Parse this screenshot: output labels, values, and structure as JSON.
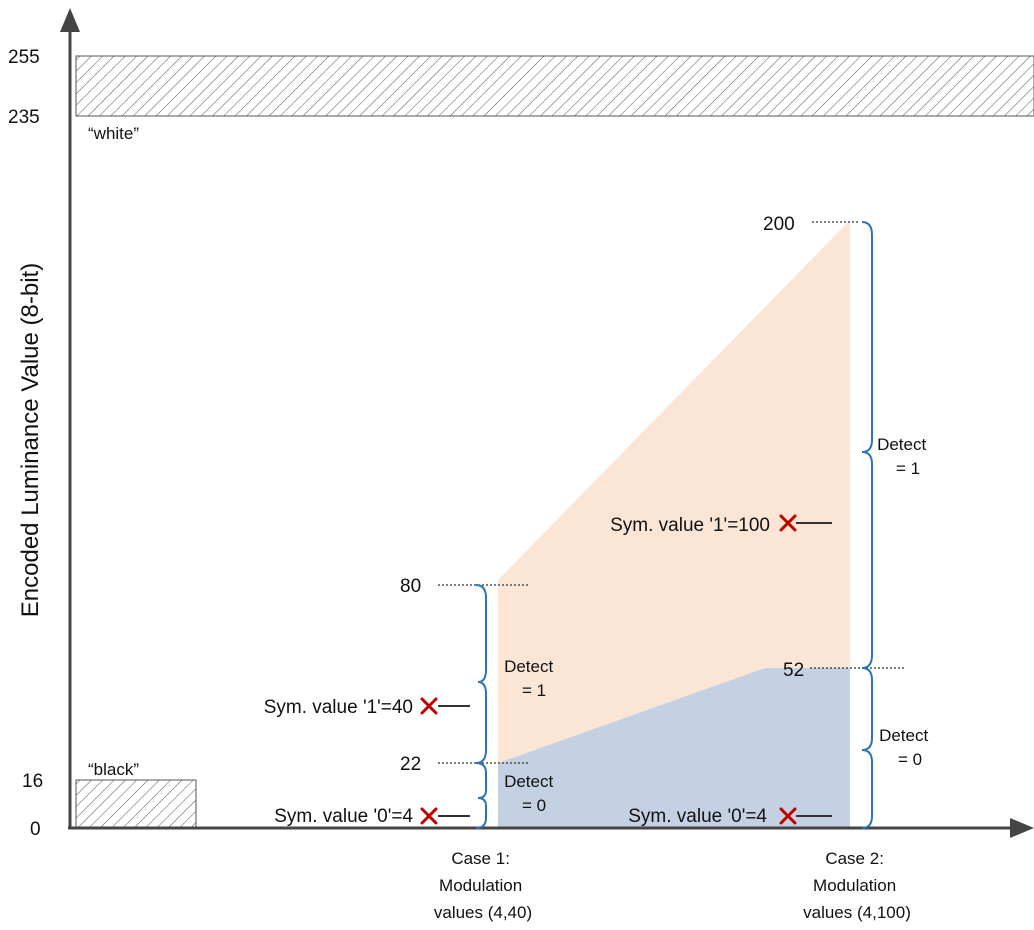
{
  "axis": {
    "y_title": "Encoded Luminance Value (8-bit)",
    "ticks": [
      "255",
      "235",
      "16",
      "0"
    ]
  },
  "zones": {
    "white": "“white”",
    "black": "“black”"
  },
  "case1": {
    "top_value": "80",
    "threshold_value": "22",
    "sym1": "Sym. value '1'=40",
    "sym0": "Sym. value '0'=4",
    "detect1_line1": "Detect",
    "detect1_line2": "= 1",
    "detect0_line1": "Detect",
    "detect0_line2": "= 0",
    "label_line1": "Case 1:",
    "label_line2": "Modulation",
    "label_line3": "values (4,40)"
  },
  "case2": {
    "top_value": "200",
    "threshold_value": "52",
    "sym1": "Sym. value '1'=100",
    "sym0": "Sym. value '0'=4",
    "detect1_line1": "Detect",
    "detect1_line2": "= 1",
    "detect0_line1": "Detect",
    "detect0_line2": "= 0",
    "label_line1": "Case 2:",
    "label_line2": "Modulation",
    "label_line3": "values (4,100)"
  },
  "colors": {
    "detect1_fill": "#fbe6d6",
    "detect0_fill": "#c3d1e2",
    "brace": "#2e74b5",
    "marker": "#c00000",
    "axis": "#444444"
  }
}
